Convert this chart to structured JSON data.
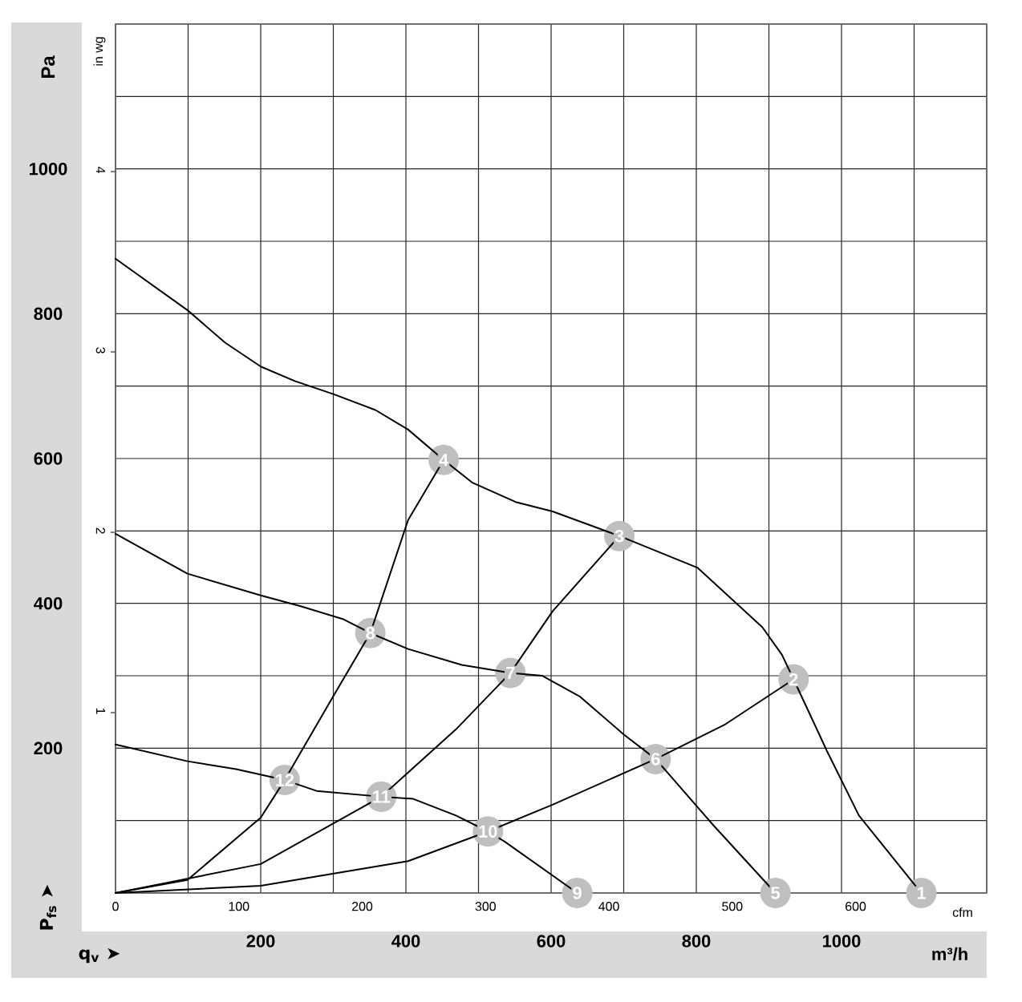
{
  "chart_data": {
    "type": "line",
    "ylabel": "Pa",
    "xlabel": "m³/h",
    "y2label": "in wg",
    "x2label": "cfm",
    "xlim": [
      0,
      1200
    ],
    "ylim": [
      0,
      1200
    ],
    "xticks": [
      {
        "value": 0,
        "label": null
      },
      {
        "value": 100,
        "label": null
      },
      200,
      {
        "value": 300,
        "label": null
      },
      400,
      {
        "value": 500,
        "label": null
      },
      600,
      {
        "value": 700,
        "label": null
      },
      800,
      {
        "value": 900,
        "label": null
      },
      1000,
      {
        "value": 1100,
        "label": null
      },
      {
        "value": 1200,
        "label": null
      }
    ],
    "yticks": [
      {
        "value": 0,
        "label": null
      },
      {
        "value": 100,
        "label": null
      },
      200,
      {
        "value": 300,
        "label": null
      },
      400,
      {
        "value": 500,
        "label": null
      },
      600,
      {
        "value": 700,
        "label": null
      },
      800,
      {
        "value": 900,
        "label": null
      },
      1000,
      {
        "value": 1100,
        "label": null
      },
      {
        "value": 1200,
        "label": null
      }
    ],
    "x2lim": [
      0,
      706.3
    ],
    "x2ticks": [
      0,
      100,
      200,
      300,
      400,
      500,
      600
    ],
    "y2lim": [
      0,
      4.818
    ],
    "y2ticks": [
      1,
      2,
      3,
      4
    ],
    "grid": true,
    "marker": "none",
    "line_style": "solid",
    "series": [
      {
        "color": "#000000",
        "x": [
          0,
          99,
          151,
          200,
          247,
          300,
          358,
          403,
          452,
          491,
          551,
          602,
          694,
          802,
          891,
          918,
          934,
          980,
          1024,
          1110
        ],
        "values": [
          876,
          805,
          760,
          727,
          707,
          689,
          667,
          640,
          598,
          567,
          540,
          527,
          493,
          449,
          367,
          329,
          295,
          196,
          107,
          0
        ]
      },
      {
        "color": "#000000",
        "x": [
          0,
          99,
          200,
          255,
          314,
          351,
          403,
          477,
          544,
          588,
          640,
          700,
          744,
          824,
          909
        ],
        "values": [
          496,
          441,
          411,
          396,
          378,
          359,
          337,
          315,
          304,
          300,
          271,
          219,
          185,
          93,
          0
        ]
      },
      {
        "color": "#000000",
        "x": [
          0,
          99,
          166,
          233,
          277,
          366,
          410,
          469,
          513,
          536,
          636
        ],
        "values": [
          205,
          182,
          171,
          156,
          141,
          133,
          130,
          107,
          85,
          71,
          0
        ]
      },
      {
        "color": "#000000",
        "x": [
          0,
          99,
          200,
          233,
          299,
          351,
          403,
          452
        ],
        "values": [
          0,
          18,
          104,
          156,
          270,
          359,
          515,
          598
        ]
      },
      {
        "color": "#000000",
        "x": [
          0,
          200,
          366,
          469,
          544,
          602,
          694
        ],
        "values": [
          0,
          40,
          133,
          226,
          304,
          389,
          493
        ]
      },
      {
        "color": "#000000",
        "x": [
          0,
          200,
          403,
          513,
          602,
          744,
          840,
          934
        ],
        "values": [
          0,
          10,
          44,
          85,
          122,
          185,
          233,
          295
        ]
      }
    ],
    "annotations": [
      "P$_{fs}$ ➤",
      "q$_{v}$ ➤",
      {
        "text": "1",
        "x": 1110,
        "y": 0
      },
      {
        "text": "2",
        "x": 934,
        "y": 295
      },
      {
        "text": "3",
        "x": 694,
        "y": 493
      },
      {
        "text": "4",
        "x": 452,
        "y": 598
      },
      {
        "text": "5",
        "x": 909,
        "y": 0
      },
      {
        "text": "6",
        "x": 744,
        "y": 185
      },
      {
        "text": "7",
        "x": 544,
        "y": 304
      },
      {
        "text": "8",
        "x": 351,
        "y": 359
      },
      {
        "text": "9",
        "x": 636,
        "y": 0
      },
      {
        "text": "10",
        "x": 513,
        "y": 85
      },
      {
        "text": "11",
        "x": 366,
        "y": 133
      },
      {
        "text": "12",
        "x": 233,
        "y": 156
      }
    ]
  }
}
